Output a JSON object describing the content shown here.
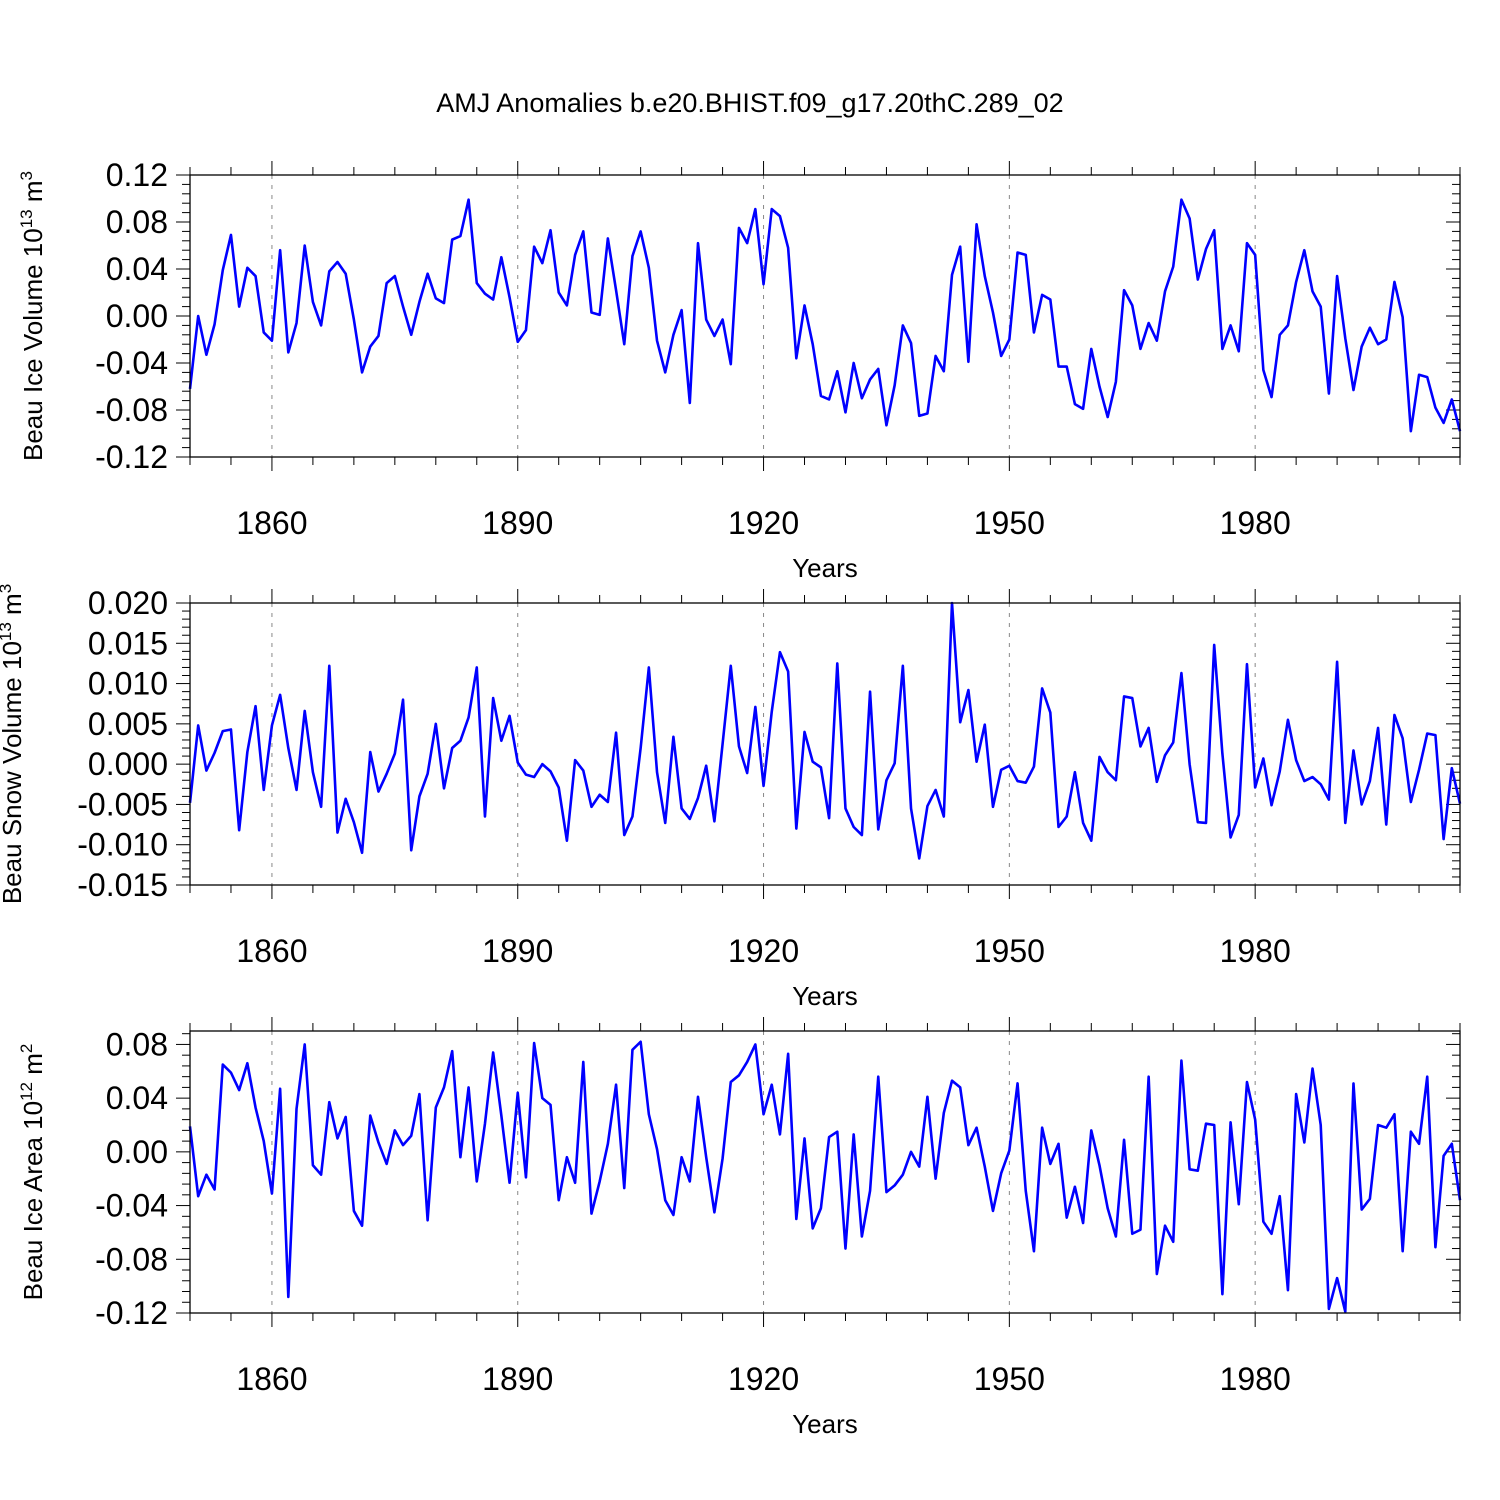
{
  "title": "AMJ Anomalies b.e20.BHIST.f09_g17.20thC.289_02",
  "colors": {
    "line": "#0000ff",
    "axis": "#000000",
    "grid": "#888888"
  },
  "chart_data": [
    {
      "type": "line",
      "ylabel_main": "Beau Ice Volume 10",
      "ylabel_exp": "13",
      "ylabel_unit": " m",
      "ylabel_unit_exp": "3",
      "xlabel": "Years",
      "xlim": [
        1850,
        2005
      ],
      "ylim": [
        -0.12,
        0.12
      ],
      "x_ticks": [
        "1860",
        "1890",
        "1920",
        "1950",
        "1980"
      ],
      "y_ticks": [
        "-0.12",
        "-0.08",
        "-0.04",
        "0.00",
        "0.04",
        "0.08",
        "0.12"
      ],
      "series": [
        {
          "name": "Beau Ice Volume",
          "x_start": 1850,
          "values": [
            -0.062,
            0.0,
            -0.033,
            -0.007,
            0.039,
            0.069,
            0.008,
            0.041,
            0.034,
            -0.014,
            -0.021,
            0.056,
            -0.031,
            -0.006,
            0.06,
            0.012,
            -0.008,
            0.038,
            0.046,
            0.036,
            -0.003,
            -0.048,
            -0.026,
            -0.017,
            0.028,
            0.034,
            0.008,
            -0.016,
            0.012,
            0.036,
            0.015,
            0.011,
            0.065,
            0.068,
            0.099,
            0.028,
            0.019,
            0.014,
            0.05,
            0.016,
            -0.022,
            -0.012,
            0.059,
            0.045,
            0.073,
            0.02,
            0.009,
            0.052,
            0.072,
            0.003,
            0.001,
            0.066,
            0.022,
            -0.024,
            0.051,
            0.072,
            0.041,
            -0.021,
            -0.048,
            -0.016,
            0.005,
            -0.074,
            0.062,
            -0.003,
            -0.017,
            -0.003,
            -0.041,
            0.075,
            0.062,
            0.091,
            0.027,
            0.091,
            0.085,
            0.058,
            -0.036,
            0.009,
            -0.024,
            -0.068,
            -0.071,
            -0.047,
            -0.082,
            -0.04,
            -0.07,
            -0.054,
            -0.045,
            -0.093,
            -0.059,
            -0.008,
            -0.023,
            -0.085,
            -0.083,
            -0.034,
            -0.047,
            0.035,
            0.059,
            -0.039,
            0.078,
            0.034,
            0.003,
            -0.034,
            -0.02,
            0.054,
            0.052,
            -0.014,
            0.018,
            0.014,
            -0.043,
            -0.043,
            -0.075,
            -0.079,
            -0.028,
            -0.06,
            -0.086,
            -0.056,
            0.022,
            0.009,
            -0.028,
            -0.006,
            -0.021,
            0.021,
            0.042,
            0.099,
            0.083,
            0.031,
            0.057,
            0.073,
            -0.028,
            -0.008,
            -0.03,
            0.062,
            0.052,
            -0.046,
            -0.069,
            -0.016,
            -0.008,
            0.029,
            0.056,
            0.021,
            0.008,
            -0.066,
            0.034,
            -0.019,
            -0.063,
            -0.026,
            -0.01,
            -0.024,
            -0.02,
            0.029,
            -0.001,
            -0.098,
            -0.05,
            -0.052,
            -0.078,
            -0.091,
            -0.071,
            -0.098
          ]
        }
      ]
    },
    {
      "type": "line",
      "ylabel_main": "Beau Snow Volume 10",
      "ylabel_exp": "13",
      "ylabel_unit": " m",
      "ylabel_unit_exp": "3",
      "xlabel": "Years",
      "xlim": [
        1850,
        2005
      ],
      "ylim": [
        -0.015,
        0.02
      ],
      "x_ticks": [
        "1860",
        "1890",
        "1920",
        "1950",
        "1980"
      ],
      "y_ticks": [
        "-0.015",
        "-0.010",
        "-0.005",
        "0.000",
        "0.005",
        "0.010",
        "0.015",
        "0.020"
      ],
      "series": [
        {
          "name": "Beau Snow Volume",
          "x_start": 1850,
          "values": [
            -0.0048,
            0.0048,
            -0.0008,
            0.0014,
            0.0041,
            0.0043,
            -0.0082,
            0.0015,
            0.0072,
            -0.0032,
            0.0048,
            0.0086,
            0.002,
            -0.0032,
            0.0066,
            -0.001,
            -0.0053,
            0.0122,
            -0.0085,
            -0.0043,
            -0.0072,
            -0.011,
            0.0015,
            -0.0034,
            -0.0012,
            0.0013,
            0.008,
            -0.0107,
            -0.004,
            -0.0012,
            0.005,
            -0.003,
            0.002,
            0.0029,
            0.0058,
            0.012,
            -0.0065,
            0.0082,
            0.0029,
            0.006,
            0.0002,
            -0.0013,
            -0.0016,
            0.0,
            -0.0009,
            -0.0029,
            -0.0095,
            0.0005,
            -0.0008,
            -0.0053,
            -0.0038,
            -0.0047,
            0.0039,
            -0.0088,
            -0.0065,
            0.002,
            0.012,
            -0.001,
            -0.0073,
            0.0034,
            -0.0055,
            -0.0068,
            -0.0042,
            -0.0002,
            -0.0071,
            0.0025,
            0.0122,
            0.0022,
            -0.0011,
            0.0071,
            -0.0027,
            0.0065,
            0.0139,
            0.0115,
            -0.008,
            0.004,
            0.0003,
            -0.0004,
            -0.0067,
            0.0125,
            -0.0055,
            -0.0078,
            -0.0088,
            0.009,
            -0.0081,
            -0.002,
            0.0001,
            0.0122,
            -0.0055,
            -0.0117,
            -0.0052,
            -0.0032,
            -0.0065,
            0.02,
            0.0052,
            0.0092,
            0.0003,
            0.0049,
            -0.0053,
            -0.0007,
            -0.0002,
            -0.0021,
            -0.0023,
            -0.0003,
            0.0094,
            0.0064,
            -0.0078,
            -0.0065,
            -0.001,
            -0.0073,
            -0.0095,
            0.0009,
            -0.001,
            -0.002,
            0.0084,
            0.0082,
            0.0022,
            0.0045,
            -0.0022,
            0.0011,
            0.0027,
            0.0113,
            0.0,
            -0.0072,
            -0.0073,
            0.0148,
            0.0013,
            -0.0091,
            -0.0063,
            0.0124,
            -0.0029,
            0.0007,
            -0.0051,
            -0.0009,
            0.0055,
            0.0005,
            -0.0021,
            -0.0016,
            -0.0025,
            -0.0044,
            0.0127,
            -0.0073,
            0.0017,
            -0.005,
            -0.0021,
            0.0045,
            -0.0075,
            0.0061,
            0.0032,
            -0.0047,
            -0.0007,
            0.0038,
            0.0036,
            -0.0093,
            -0.0005,
            -0.0049
          ]
        }
      ]
    },
    {
      "type": "line",
      "ylabel_main": "Beau Ice Area 10",
      "ylabel_exp": "12",
      "ylabel_unit": " m",
      "ylabel_unit_exp": "2",
      "xlabel": "Years",
      "xlim": [
        1850,
        2005
      ],
      "ylim": [
        -0.12,
        0.09
      ],
      "x_ticks": [
        "1860",
        "1890",
        "1920",
        "1950",
        "1980"
      ],
      "y_ticks": [
        "-0.12",
        "-0.08",
        "-0.04",
        "0.00",
        "0.04",
        "0.08"
      ],
      "series": [
        {
          "name": "Beau Ice Area",
          "x_start": 1850,
          "values": [
            0.019,
            -0.033,
            -0.017,
            -0.028,
            0.065,
            0.059,
            0.046,
            0.066,
            0.033,
            0.008,
            -0.031,
            0.047,
            -0.108,
            0.032,
            0.08,
            -0.01,
            -0.017,
            0.037,
            0.01,
            0.026,
            -0.044,
            -0.055,
            0.027,
            0.007,
            -0.009,
            0.016,
            0.005,
            0.012,
            0.043,
            -0.051,
            0.033,
            0.048,
            0.075,
            -0.004,
            0.048,
            -0.022,
            0.021,
            0.074,
            0.027,
            -0.023,
            0.044,
            -0.019,
            0.081,
            0.04,
            0.035,
            -0.036,
            -0.004,
            -0.023,
            0.067,
            -0.046,
            -0.022,
            0.006,
            0.05,
            -0.027,
            0.076,
            0.082,
            0.028,
            0.002,
            -0.036,
            -0.047,
            -0.004,
            -0.022,
            0.041,
            -0.004,
            -0.045,
            -0.005,
            0.052,
            0.057,
            0.067,
            0.08,
            0.028,
            0.05,
            0.013,
            0.073,
            -0.05,
            0.01,
            -0.057,
            -0.042,
            0.011,
            0.015,
            -0.072,
            0.013,
            -0.063,
            -0.029,
            0.056,
            -0.03,
            -0.025,
            -0.017,
            0.0,
            -0.011,
            0.041,
            -0.02,
            0.029,
            0.053,
            0.048,
            0.005,
            0.018,
            -0.011,
            -0.044,
            -0.016,
            0.001,
            0.051,
            -0.029,
            -0.074,
            0.018,
            -0.009,
            0.006,
            -0.049,
            -0.026,
            -0.053,
            0.016,
            -0.01,
            -0.042,
            -0.063,
            0.009,
            -0.061,
            -0.058,
            0.056,
            -0.091,
            -0.055,
            -0.067,
            0.068,
            -0.013,
            -0.014,
            0.021,
            0.02,
            -0.106,
            0.022,
            -0.039,
            0.052,
            0.024,
            -0.052,
            -0.061,
            -0.033,
            -0.103,
            0.043,
            0.007,
            0.062,
            0.02,
            -0.117,
            -0.094,
            -0.119,
            0.051,
            -0.043,
            -0.035,
            0.02,
            0.018,
            0.028,
            -0.074,
            0.015,
            0.006,
            0.056,
            -0.071,
            -0.003,
            0.006,
            -0.036
          ]
        }
      ]
    }
  ]
}
